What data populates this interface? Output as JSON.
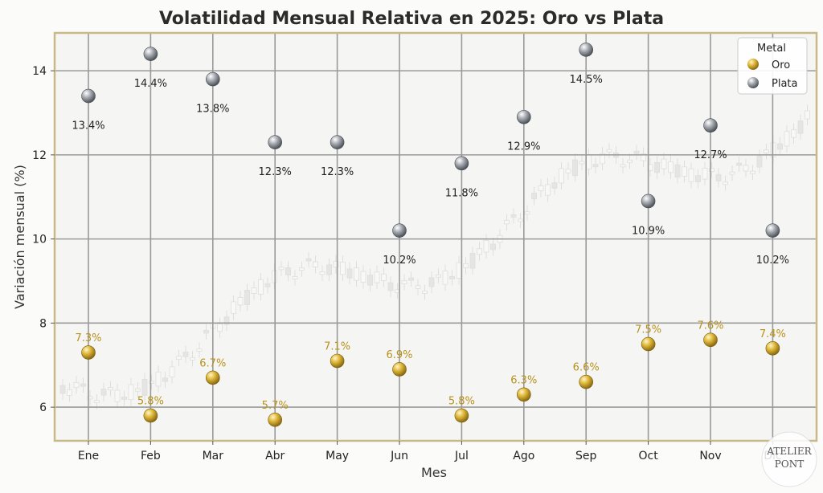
{
  "chart_data": {
    "type": "scatter",
    "title": "Volatilidad Mensual Relativa en 2025: Oro vs Plata",
    "xlabel": "Mes",
    "ylabel": "Variación mensual (%)",
    "categories": [
      "Ene",
      "Feb",
      "Mar",
      "Abr",
      "May",
      "Jun",
      "Jul",
      "Ago",
      "Sep",
      "Oct",
      "Nov",
      "Dic"
    ],
    "ylim": [
      5.2,
      14.9
    ],
    "yticks": [
      6,
      8,
      10,
      12,
      14
    ],
    "grid": true,
    "legend": {
      "title": "Metal",
      "position": "top-right"
    },
    "series": [
      {
        "name": "Oro",
        "color": "#c9a227",
        "values": [
          7.3,
          5.8,
          6.7,
          5.7,
          7.1,
          6.9,
          5.8,
          6.3,
          6.6,
          7.5,
          7.6,
          7.4
        ],
        "labels": [
          "7.3%",
          "5.8%",
          "6.7%",
          "5.7%",
          "7.1%",
          "6.9%",
          "5.8%",
          "6.3%",
          "6.6%",
          "7.5%",
          "7.6%",
          "7.4%"
        ]
      },
      {
        "name": "Plata",
        "color": "#8e9399",
        "values": [
          13.4,
          14.4,
          13.8,
          12.3,
          12.3,
          10.2,
          11.8,
          12.9,
          14.5,
          10.9,
          12.7,
          10.2
        ],
        "labels": [
          "13.4%",
          "14.4%",
          "13.8%",
          "12.3%",
          "12.3%",
          "10.2%",
          "11.8%",
          "12.9%",
          "14.5%",
          "10.9%",
          "12.7%",
          "10.2%"
        ]
      }
    ]
  },
  "watermark": {
    "line1": "ATELIER",
    "line2": "PONT"
  }
}
